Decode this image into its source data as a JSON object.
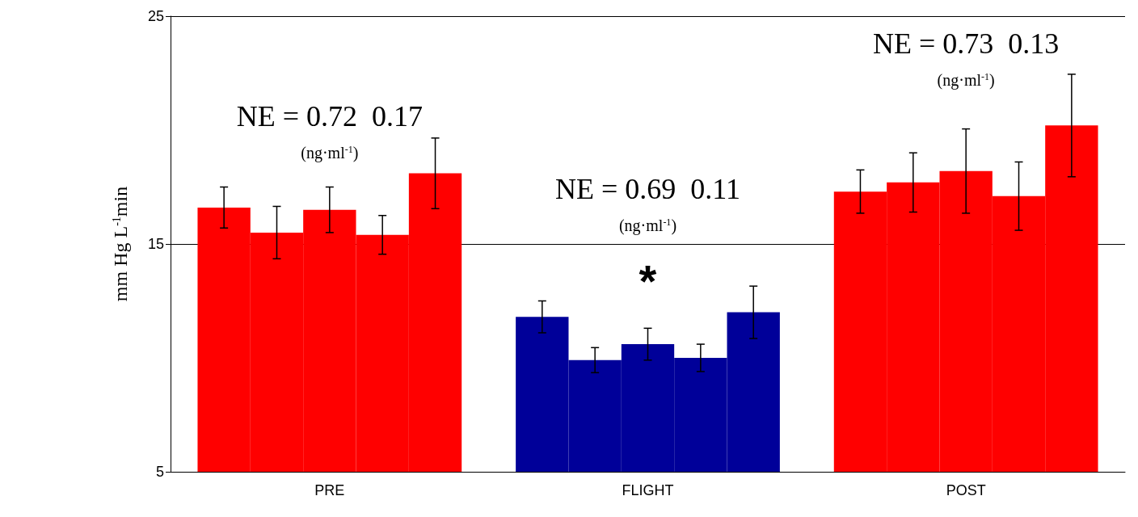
{
  "chart_data": {
    "type": "bar",
    "ylabel": "mm Hg L$^{-1}$min",
    "categories": [
      "PRE",
      "FLIGHT",
      "POST"
    ],
    "series": [
      {
        "colors": [
          "#ff0000",
          "#000099",
          "#ff0000"
        ],
        "values": [
          16.6,
          11.8,
          17.3
        ],
        "errors": [
          0.9,
          0.7,
          0.95
        ]
      },
      {
        "colors": [
          "#ff0000",
          "#000099",
          "#ff0000"
        ],
        "values": [
          15.5,
          9.9,
          17.7
        ],
        "errors": [
          1.15,
          0.55,
          1.3
        ]
      },
      {
        "colors": [
          "#ff0000",
          "#000099",
          "#ff0000"
        ],
        "values": [
          16.5,
          10.6,
          18.2
        ],
        "errors": [
          1.0,
          0.7,
          1.85
        ]
      },
      {
        "colors": [
          "#ff0000",
          "#000099",
          "#ff0000"
        ],
        "values": [
          15.4,
          10.0,
          17.1
        ],
        "errors": [
          0.85,
          0.6,
          1.5
        ]
      },
      {
        "colors": [
          "#ff0000",
          "#000099",
          "#ff0000"
        ],
        "values": [
          18.1,
          12.0,
          20.2
        ],
        "errors": [
          1.55,
          1.15,
          2.25
        ]
      }
    ],
    "ylim": [
      5,
      25
    ],
    "yticks": [
      5,
      15,
      25
    ],
    "grid": "y",
    "annotations": [
      "NE = 0.72  0.17",
      "(ng·ml$^{-1}$)",
      "NE = 0.69  0.11",
      "(ng·ml$^{-1}$)",
      "*",
      "NE = 0.73  0.13",
      "(ng·ml$^{-1}$)"
    ]
  }
}
